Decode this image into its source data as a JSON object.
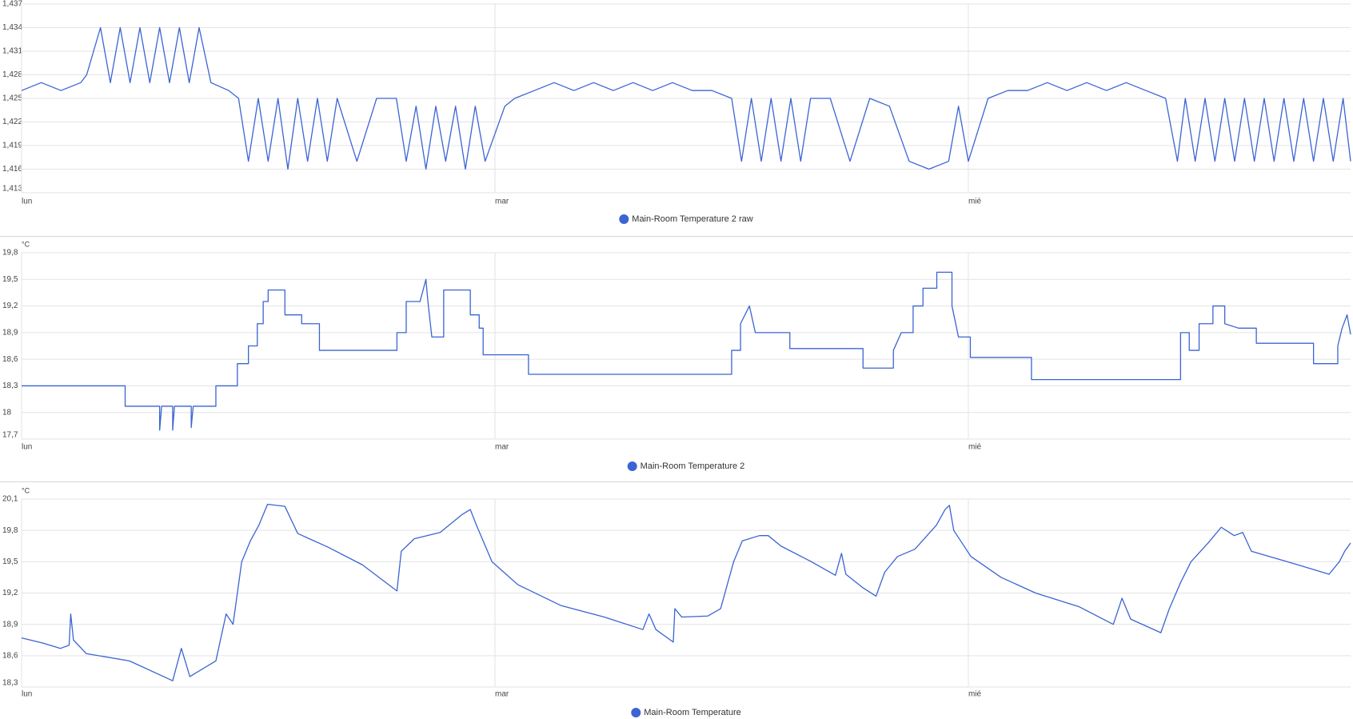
{
  "chart_data": [
    {
      "type": "line",
      "x": [
        0,
        1,
        2,
        3,
        3.3,
        4,
        4.5,
        5,
        5.5,
        6,
        6.5,
        7,
        7.5,
        8,
        8.5,
        9,
        9.6,
        10.5,
        11,
        11.5,
        12,
        12.5,
        13,
        13.5,
        14,
        14.5,
        15,
        15.5,
        16,
        17,
        18,
        19,
        19.5,
        20,
        20.5,
        21,
        21.5,
        22,
        22.5,
        23,
        23.5,
        24.5,
        25,
        26,
        27,
        28,
        29,
        30,
        31,
        32,
        33,
        34,
        35,
        36,
        36.5,
        37,
        37.5,
        38,
        38.5,
        39,
        39.5,
        40,
        41,
        42,
        43,
        44,
        45,
        46,
        47,
        47.5,
        48,
        49,
        50,
        51,
        52,
        53,
        54,
        55,
        56,
        57,
        58,
        58.6,
        59,
        59.5,
        60,
        60.5,
        61,
        61.5,
        62,
        62.5,
        63,
        63.5,
        64,
        64.5,
        65,
        65.5,
        66,
        66.5,
        67,
        67.38
      ],
      "series": [
        {
          "name": "Main-Room Temperature 2 raw",
          "color": "#3b64d4",
          "values": [
            1426,
            1427,
            1426,
            1427,
            1428,
            1434,
            1427,
            1434,
            1427,
            1434,
            1427,
            1434,
            1427,
            1434,
            1427,
            1434,
            1427,
            1426,
            1425,
            1417,
            1425,
            1417,
            1425,
            1416,
            1425,
            1417,
            1425,
            1417,
            1425,
            1417,
            1425,
            1425,
            1417,
            1424,
            1416,
            1424,
            1417,
            1424,
            1416,
            1424,
            1417,
            1424,
            1425,
            1426,
            1427,
            1426,
            1427,
            1426,
            1427,
            1426,
            1427,
            1426,
            1426,
            1425,
            1417,
            1425,
            1417,
            1425,
            1417,
            1425,
            1417,
            1425,
            1425,
            1417,
            1425,
            1424,
            1417,
            1416,
            1417,
            1424,
            1417,
            1425,
            1426,
            1426,
            1427,
            1426,
            1427,
            1426,
            1427,
            1426,
            1425,
            1417,
            1425,
            1417,
            1425,
            1417,
            1425,
            1417,
            1425,
            1417,
            1425,
            1417,
            1425,
            1417,
            1425,
            1417,
            1425,
            1417,
            1425,
            1417
          ]
        }
      ],
      "xlim": [
        0,
        67.38
      ],
      "xticks": [
        {
          "value": 0,
          "label": "lun"
        },
        {
          "value": 24,
          "label": "mar"
        },
        {
          "value": 48,
          "label": "mié"
        }
      ],
      "ylim": [
        1413,
        1437
      ],
      "yticks": [
        {
          "value": 1413,
          "label": "1,413"
        },
        {
          "value": 1416,
          "label": "1,416"
        },
        {
          "value": 1419,
          "label": "1,419"
        },
        {
          "value": 1422,
          "label": "1,422"
        },
        {
          "value": 1425,
          "label": "1,425"
        },
        {
          "value": 1428,
          "label": "1,428"
        },
        {
          "value": 1431,
          "label": "1,431"
        },
        {
          "value": 1434,
          "label": "1,434"
        },
        {
          "value": 1437,
          "label": "1,437"
        }
      ],
      "grid": true
    },
    {
      "type": "line",
      "y_unit": "°C",
      "x": [
        0,
        5.25,
        5.25,
        7.0,
        7.0,
        7.1,
        7.66,
        7.66,
        7.75,
        8.6,
        8.6,
        8.7,
        9.85,
        9.85,
        10.94,
        10.94,
        11.5,
        11.5,
        11.95,
        11.95,
        12.25,
        12.25,
        12.5,
        12.5,
        13.35,
        13.35,
        14.2,
        14.2,
        15.1,
        15.1,
        19.03,
        19.03,
        19.5,
        19.5,
        20.2,
        20.5,
        20.6,
        20.8,
        21.4,
        21.4,
        22.75,
        22.75,
        23.2,
        23.2,
        23.4,
        23.4,
        25.7,
        25.7,
        36.0,
        36.0,
        36.45,
        36.45,
        36.9,
        37.2,
        38.95,
        38.95,
        42.66,
        42.66,
        44.2,
        44.2,
        44.6,
        45.2,
        45.2,
        45.7,
        45.7,
        46.4,
        46.4,
        47.17,
        47.17,
        47.5,
        48.1,
        48.1,
        51.2,
        51.2,
        58.76,
        58.76,
        59.2,
        59.2,
        59.7,
        59.7,
        60.4,
        60.4,
        61.0,
        61.0,
        61.7,
        62.6,
        62.6,
        65.5,
        65.5,
        66.73,
        66.73,
        66.95,
        67.2,
        67.38
      ],
      "series": [
        {
          "name": "Main-Room Temperature 2",
          "color": "#3b64d4",
          "values": [
            18.3,
            18.3,
            18.07,
            18.07,
            17.8,
            18.07,
            18.07,
            17.8,
            18.07,
            18.07,
            17.83,
            18.07,
            18.07,
            18.3,
            18.3,
            18.55,
            18.55,
            18.75,
            18.75,
            19.0,
            19.0,
            19.25,
            19.25,
            19.38,
            19.38,
            19.1,
            19.1,
            19.0,
            19.0,
            18.7,
            18.7,
            18.9,
            18.9,
            19.25,
            19.25,
            19.5,
            19.25,
            18.85,
            18.85,
            19.38,
            19.38,
            19.1,
            19.1,
            18.95,
            18.95,
            18.65,
            18.65,
            18.43,
            18.43,
            18.7,
            18.7,
            19.0,
            19.2,
            18.9,
            18.9,
            18.72,
            18.72,
            18.5,
            18.5,
            18.7,
            18.9,
            18.9,
            19.2,
            19.2,
            19.4,
            19.4,
            19.58,
            19.58,
            19.2,
            18.85,
            18.85,
            18.62,
            18.62,
            18.37,
            18.37,
            18.9,
            18.9,
            18.7,
            18.7,
            19.0,
            19.0,
            19.2,
            19.2,
            19.0,
            18.95,
            18.95,
            18.78,
            18.78,
            18.55,
            18.55,
            18.75,
            18.95,
            19.1,
            18.88
          ]
        }
      ],
      "xlim": [
        0,
        67.38
      ],
      "xticks": [
        {
          "value": 0,
          "label": "lun"
        },
        {
          "value": 24,
          "label": "mar"
        },
        {
          "value": 48,
          "label": "mié"
        }
      ],
      "ylim": [
        17.7,
        19.8
      ],
      "yticks": [
        {
          "value": 17.7,
          "label": "17,7"
        },
        18,
        {
          "value": 18.3,
          "label": "18,3"
        },
        {
          "value": 18.6,
          "label": "18,6"
        },
        {
          "value": 18.9,
          "label": "18,9"
        },
        {
          "value": 19.2,
          "label": "19,2"
        },
        {
          "value": 19.5,
          "label": "19,5"
        },
        {
          "value": 19.8,
          "label": "19,8"
        }
      ],
      "grid": true
    },
    {
      "type": "line",
      "y_unit": "°C",
      "x": [
        0,
        1.09,
        1.97,
        2.41,
        2.49,
        2.63,
        3.28,
        5.47,
        7.66,
        8.1,
        8.53,
        9.85,
        10.37,
        10.72,
        11.16,
        11.6,
        12.03,
        12.47,
        13.35,
        14.0,
        15.53,
        17.28,
        19.03,
        19.25,
        19.91,
        21.22,
        22.32,
        22.75,
        23.06,
        23.85,
        25.16,
        27.35,
        29.54,
        31.5,
        31.81,
        32.16,
        33.04,
        33.12,
        33.47,
        34.79,
        35.44,
        36.1,
        36.54,
        37.41,
        37.85,
        38.5,
        40.04,
        41.26,
        41.57,
        41.79,
        42.66,
        43.32,
        43.76,
        44.41,
        45.29,
        46.38,
        46.82,
        47.04,
        47.26,
        48.13,
        49.66,
        51.41,
        53.6,
        55.35,
        55.79,
        56.23,
        57.76,
        58.19,
        58.76,
        59.29,
        60.16,
        60.82,
        61.48,
        61.91,
        62.35,
        64.54,
        66.29,
        66.81,
        67.08,
        67.38
      ],
      "series": [
        {
          "name": "Main-Room Temperature",
          "color": "#3b64d4",
          "values": [
            18.77,
            18.72,
            18.67,
            18.7,
            19.0,
            18.75,
            18.62,
            18.55,
            18.36,
            18.67,
            18.4,
            18.55,
            19.0,
            18.9,
            19.5,
            19.7,
            19.85,
            20.05,
            20.03,
            19.77,
            19.64,
            19.47,
            19.22,
            19.6,
            19.72,
            19.78,
            19.95,
            20.0,
            19.85,
            19.5,
            19.28,
            19.08,
            18.97,
            18.85,
            19.0,
            18.85,
            18.73,
            19.05,
            18.97,
            18.98,
            19.05,
            19.5,
            19.7,
            19.75,
            19.75,
            19.65,
            19.5,
            19.37,
            19.58,
            19.38,
            19.25,
            19.17,
            19.4,
            19.55,
            19.62,
            19.85,
            20.0,
            20.04,
            19.8,
            19.55,
            19.35,
            19.2,
            19.07,
            18.9,
            19.15,
            18.95,
            18.82,
            19.05,
            19.3,
            19.5,
            19.68,
            19.83,
            19.75,
            19.78,
            19.6,
            19.48,
            19.38,
            19.5,
            19.6,
            19.68
          ]
        }
      ],
      "xlim": [
        0,
        67.38
      ],
      "xticks": [
        {
          "value": 0,
          "label": "lun"
        },
        {
          "value": 24,
          "label": "mar"
        },
        {
          "value": 48,
          "label": "mié"
        }
      ],
      "ylim": [
        18.3,
        20.1
      ],
      "yticks": [
        {
          "value": 18.3,
          "label": "18,3"
        },
        {
          "value": 18.6,
          "label": "18,6"
        },
        {
          "value": 18.9,
          "label": "18,9"
        },
        {
          "value": 19.2,
          "label": "19,2"
        },
        {
          "value": 19.5,
          "label": "19,5"
        },
        {
          "value": 19.8,
          "label": "19,8"
        },
        {
          "value": 20.1,
          "label": "20,1"
        }
      ],
      "grid": true
    }
  ]
}
